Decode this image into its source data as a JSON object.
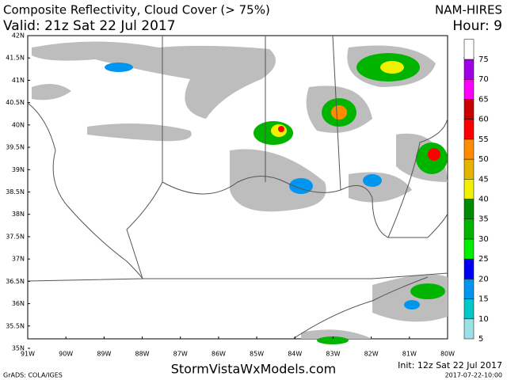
{
  "header": {
    "title": "Composite Reflectivity, Cloud Cover (> 75%)",
    "model": "NAM-HIRES",
    "valid": "Valid: 21z Sat 22 Jul 2017",
    "hour": "Hour: 9"
  },
  "map": {
    "lat_labels": [
      "42N",
      "41.5N",
      "41N",
      "40.5N",
      "40N",
      "39.5N",
      "39N",
      "38.5N",
      "38N",
      "37.5N",
      "37N",
      "36.5N",
      "36N",
      "35.5N",
      "35N"
    ],
    "lon_labels": [
      "91W",
      "90W",
      "89W",
      "88W",
      "87W",
      "86W",
      "85W",
      "84W",
      "83W",
      "82W",
      "81W",
      "80W"
    ]
  },
  "colorbar": [
    {
      "label": "5",
      "color": "#9be1e6"
    },
    {
      "label": "10",
      "color": "#00c8c8"
    },
    {
      "label": "15",
      "color": "#0096f0"
    },
    {
      "label": "20",
      "color": "#0000f0"
    },
    {
      "label": "25",
      "color": "#00f000"
    },
    {
      "label": "30",
      "color": "#00b400"
    },
    {
      "label": "35",
      "color": "#008c00"
    },
    {
      "label": "40",
      "color": "#f0f000"
    },
    {
      "label": "45",
      "color": "#e6b400"
    },
    {
      "label": "50",
      "color": "#ff8c00"
    },
    {
      "label": "55",
      "color": "#ff0000"
    },
    {
      "label": "60",
      "color": "#c80000"
    },
    {
      "label": "65",
      "color": "#ff00ff"
    },
    {
      "label": "70",
      "color": "#a000e6"
    },
    {
      "label": "75",
      "color": "#ffffff"
    }
  ],
  "footer": {
    "grads": "GrADS: COLA/IGES",
    "site": "StormVistaWxModels.com",
    "init": "Init: 12z Sat 22 Jul 2017",
    "timestamp": "2017-07-22-10:00"
  }
}
